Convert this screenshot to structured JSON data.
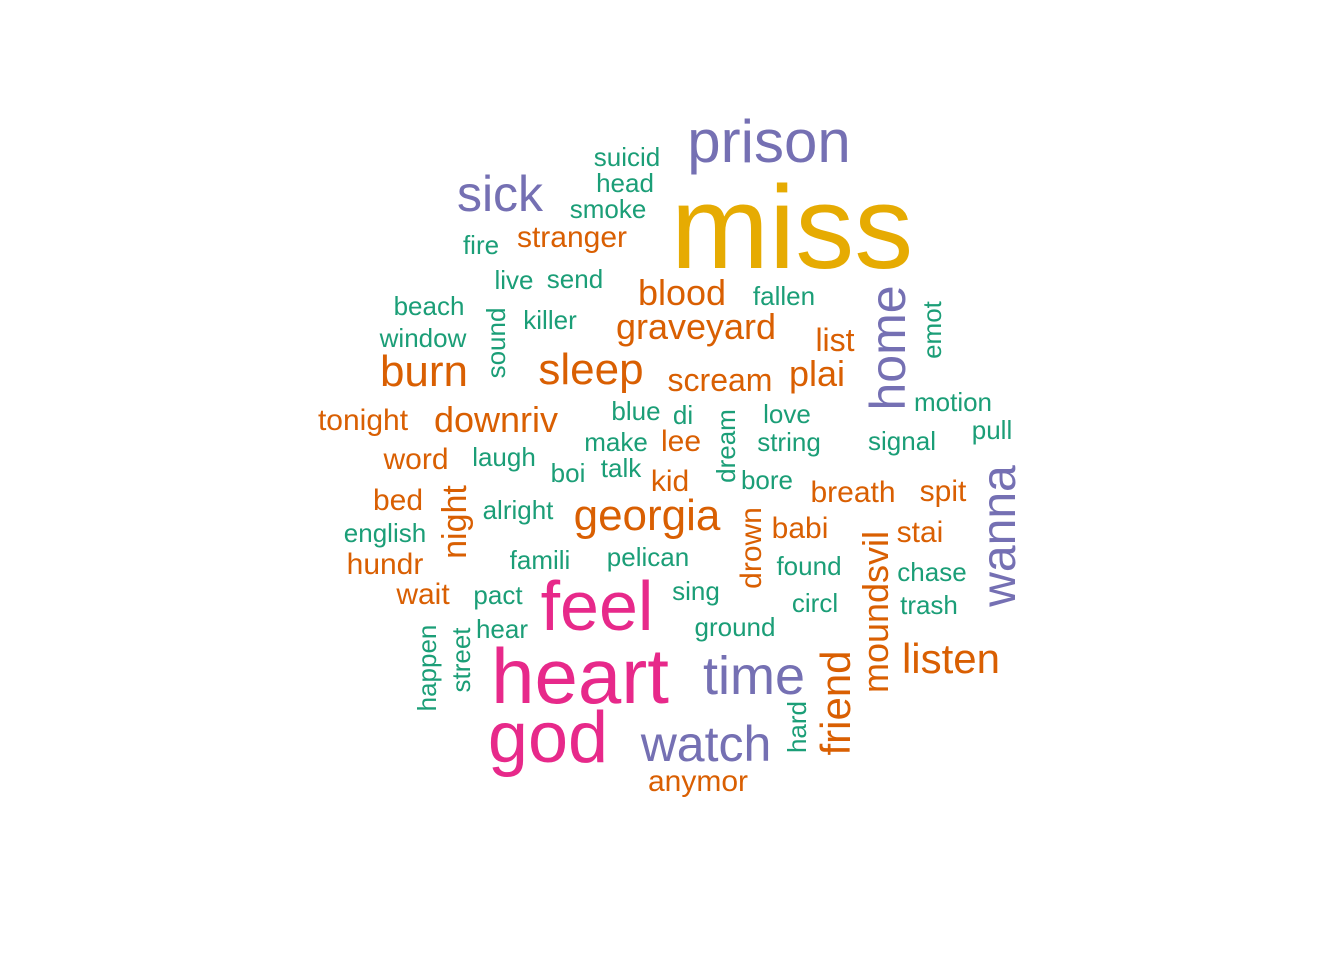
{
  "colors": {
    "gold": "#E6AB02",
    "magenta": "#E7298A",
    "purple": "#7570B3",
    "orange": "#D95F02",
    "teal": "#1B9E77"
  },
  "words": [
    {
      "text": "miss",
      "color": "gold"
    },
    {
      "text": "heart",
      "color": "magenta"
    },
    {
      "text": "god",
      "color": "magenta"
    },
    {
      "text": "feel",
      "color": "magenta"
    },
    {
      "text": "prison",
      "color": "purple"
    },
    {
      "text": "sick",
      "color": "purple"
    },
    {
      "text": "time",
      "color": "purple"
    },
    {
      "text": "watch",
      "color": "purple"
    },
    {
      "text": "home",
      "color": "purple"
    },
    {
      "text": "wanna",
      "color": "purple"
    },
    {
      "text": "georgia",
      "color": "orange"
    },
    {
      "text": "burn",
      "color": "orange"
    },
    {
      "text": "sleep",
      "color": "orange"
    },
    {
      "text": "listen",
      "color": "orange"
    },
    {
      "text": "friend",
      "color": "orange"
    },
    {
      "text": "moundsvil",
      "color": "orange"
    },
    {
      "text": "night",
      "color": "orange"
    },
    {
      "text": "blood",
      "color": "orange"
    },
    {
      "text": "graveyard",
      "color": "orange"
    },
    {
      "text": "downriv",
      "color": "orange"
    },
    {
      "text": "plai",
      "color": "orange"
    },
    {
      "text": "stranger",
      "color": "orange"
    },
    {
      "text": "scream",
      "color": "orange"
    },
    {
      "text": "list",
      "color": "orange"
    },
    {
      "text": "tonight",
      "color": "orange"
    },
    {
      "text": "word",
      "color": "orange"
    },
    {
      "text": "bed",
      "color": "orange"
    },
    {
      "text": "hundr",
      "color": "orange"
    },
    {
      "text": "wait",
      "color": "orange"
    },
    {
      "text": "lee",
      "color": "orange"
    },
    {
      "text": "kid",
      "color": "orange"
    },
    {
      "text": "babi",
      "color": "orange"
    },
    {
      "text": "breath",
      "color": "orange"
    },
    {
      "text": "spit",
      "color": "orange"
    },
    {
      "text": "stai",
      "color": "orange"
    },
    {
      "text": "anymor",
      "color": "orange"
    },
    {
      "text": "drown",
      "color": "orange"
    },
    {
      "text": "suicid",
      "color": "teal"
    },
    {
      "text": "head",
      "color": "teal"
    },
    {
      "text": "smoke",
      "color": "teal"
    },
    {
      "text": "fire",
      "color": "teal"
    },
    {
      "text": "live",
      "color": "teal"
    },
    {
      "text": "send",
      "color": "teal"
    },
    {
      "text": "beach",
      "color": "teal"
    },
    {
      "text": "window",
      "color": "teal"
    },
    {
      "text": "sound",
      "color": "teal"
    },
    {
      "text": "killer",
      "color": "teal"
    },
    {
      "text": "fallen",
      "color": "teal"
    },
    {
      "text": "emot",
      "color": "teal"
    },
    {
      "text": "motion",
      "color": "teal"
    },
    {
      "text": "pull",
      "color": "teal"
    },
    {
      "text": "blue",
      "color": "teal"
    },
    {
      "text": "di",
      "color": "teal"
    },
    {
      "text": "dream",
      "color": "teal"
    },
    {
      "text": "love",
      "color": "teal"
    },
    {
      "text": "make",
      "color": "teal"
    },
    {
      "text": "string",
      "color": "teal"
    },
    {
      "text": "signal",
      "color": "teal"
    },
    {
      "text": "laugh",
      "color": "teal"
    },
    {
      "text": "boi",
      "color": "teal"
    },
    {
      "text": "talk",
      "color": "teal"
    },
    {
      "text": "bore",
      "color": "teal"
    },
    {
      "text": "alright",
      "color": "teal"
    },
    {
      "text": "english",
      "color": "teal"
    },
    {
      "text": "famili",
      "color": "teal"
    },
    {
      "text": "pelican",
      "color": "teal"
    },
    {
      "text": "found",
      "color": "teal"
    },
    {
      "text": "chase",
      "color": "teal"
    },
    {
      "text": "pact",
      "color": "teal"
    },
    {
      "text": "sing",
      "color": "teal"
    },
    {
      "text": "circl",
      "color": "teal"
    },
    {
      "text": "trash",
      "color": "teal"
    },
    {
      "text": "hear",
      "color": "teal"
    },
    {
      "text": "ground",
      "color": "teal"
    },
    {
      "text": "happen",
      "color": "teal"
    },
    {
      "text": "street",
      "color": "teal"
    },
    {
      "text": "hard",
      "color": "teal"
    }
  ]
}
